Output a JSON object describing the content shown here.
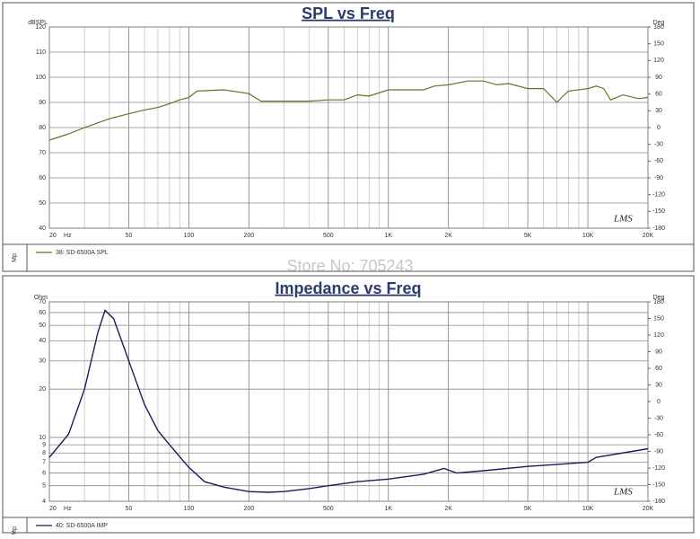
{
  "watermark": "Store No: 705243",
  "chart_data": [
    {
      "type": "line",
      "title": "SPL vs Freq",
      "ylabel": "dBSPL",
      "y2label": "Deg",
      "xlabel": "Hz",
      "logo": "LMS",
      "side_label": "Mp",
      "xscale": "log",
      "yscale": "linear",
      "grid": true,
      "x": [
        20,
        25,
        30,
        40,
        50,
        60,
        70,
        80,
        90,
        100,
        110,
        150,
        200,
        230,
        300,
        400,
        500,
        600,
        700,
        800,
        1000,
        1500,
        1700,
        2000,
        2500,
        3000,
        3500,
        4000,
        5000,
        6000,
        7000,
        7500,
        8000,
        10000,
        11000,
        12000,
        13000,
        15000,
        18000,
        20000
      ],
      "series": [
        {
          "name": "38: SD-6500A SPL",
          "color": "#6e6e28",
          "values": [
            75,
            77.5,
            80,
            83.5,
            85.5,
            87,
            88,
            89.5,
            91,
            92,
            94.5,
            95,
            93.5,
            90.5,
            90.5,
            90.5,
            91,
            91,
            93,
            92.5,
            95,
            95,
            96.5,
            97,
            98.5,
            98.5,
            97,
            97.5,
            95.5,
            95.5,
            90,
            92.5,
            94.5,
            95.5,
            96.5,
            95.5,
            91,
            93,
            91.5,
            92
          ]
        }
      ],
      "xlim": [
        20,
        20000
      ],
      "xticks": [
        20,
        50,
        100,
        200,
        500,
        {
          "value": 1000,
          "label": "1K"
        },
        {
          "value": 2000,
          "label": "2K"
        },
        {
          "value": 5000,
          "label": "5K"
        },
        {
          "value": 10000,
          "label": "10K"
        },
        {
          "value": 20000,
          "label": "20K"
        }
      ],
      "ylim": [
        40,
        120
      ],
      "yticks": [
        40,
        50,
        60,
        70,
        80,
        90,
        100,
        110,
        120
      ],
      "y2lim": [
        -180,
        180
      ],
      "y2ticks": [
        180,
        150,
        120,
        90,
        60,
        30,
        0,
        -30,
        -60,
        -90,
        -120,
        -150,
        -180
      ]
    },
    {
      "type": "line",
      "title": "Impedance vs Freq",
      "ylabel": "Ohm",
      "y2label": "Deg",
      "xlabel": "Hz",
      "logo": "LMS",
      "side_label": "Mp",
      "xscale": "log",
      "yscale": "log",
      "grid": true,
      "x": [
        20,
        25,
        30,
        35,
        38,
        42,
        50,
        60,
        70,
        80,
        100,
        120,
        150,
        200,
        250,
        300,
        400,
        500,
        700,
        1000,
        1500,
        1900,
        2200,
        3000,
        5000,
        10000,
        11000,
        20000
      ],
      "series": [
        {
          "name": "40: SD-6500A IMP",
          "color": "#1c1c5c",
          "values": [
            7.5,
            10.5,
            20,
            45,
            62,
            55,
            30,
            16,
            11,
            9,
            6.5,
            5.3,
            4.9,
            4.6,
            4.55,
            4.6,
            4.8,
            5.0,
            5.3,
            5.5,
            5.9,
            6.4,
            6.0,
            6.2,
            6.6,
            7.0,
            7.5,
            8.5
          ]
        }
      ],
      "xlim": [
        20,
        20000
      ],
      "xticks": [
        20,
        50,
        100,
        200,
        500,
        {
          "value": 1000,
          "label": "1K"
        },
        {
          "value": 2000,
          "label": "2K"
        },
        {
          "value": 5000,
          "label": "5K"
        },
        {
          "value": 10000,
          "label": "10K"
        },
        {
          "value": 20000,
          "label": "20K"
        }
      ],
      "ylim": [
        4,
        70
      ],
      "yticks": [
        4,
        5,
        6,
        7,
        8,
        9,
        10,
        20,
        30,
        40,
        50,
        60,
        70
      ],
      "y2lim": [
        -180,
        180
      ],
      "y2ticks": [
        180,
        150,
        120,
        90,
        60,
        30,
        0,
        -30,
        -60,
        -90,
        -120,
        -150,
        -180
      ]
    }
  ]
}
